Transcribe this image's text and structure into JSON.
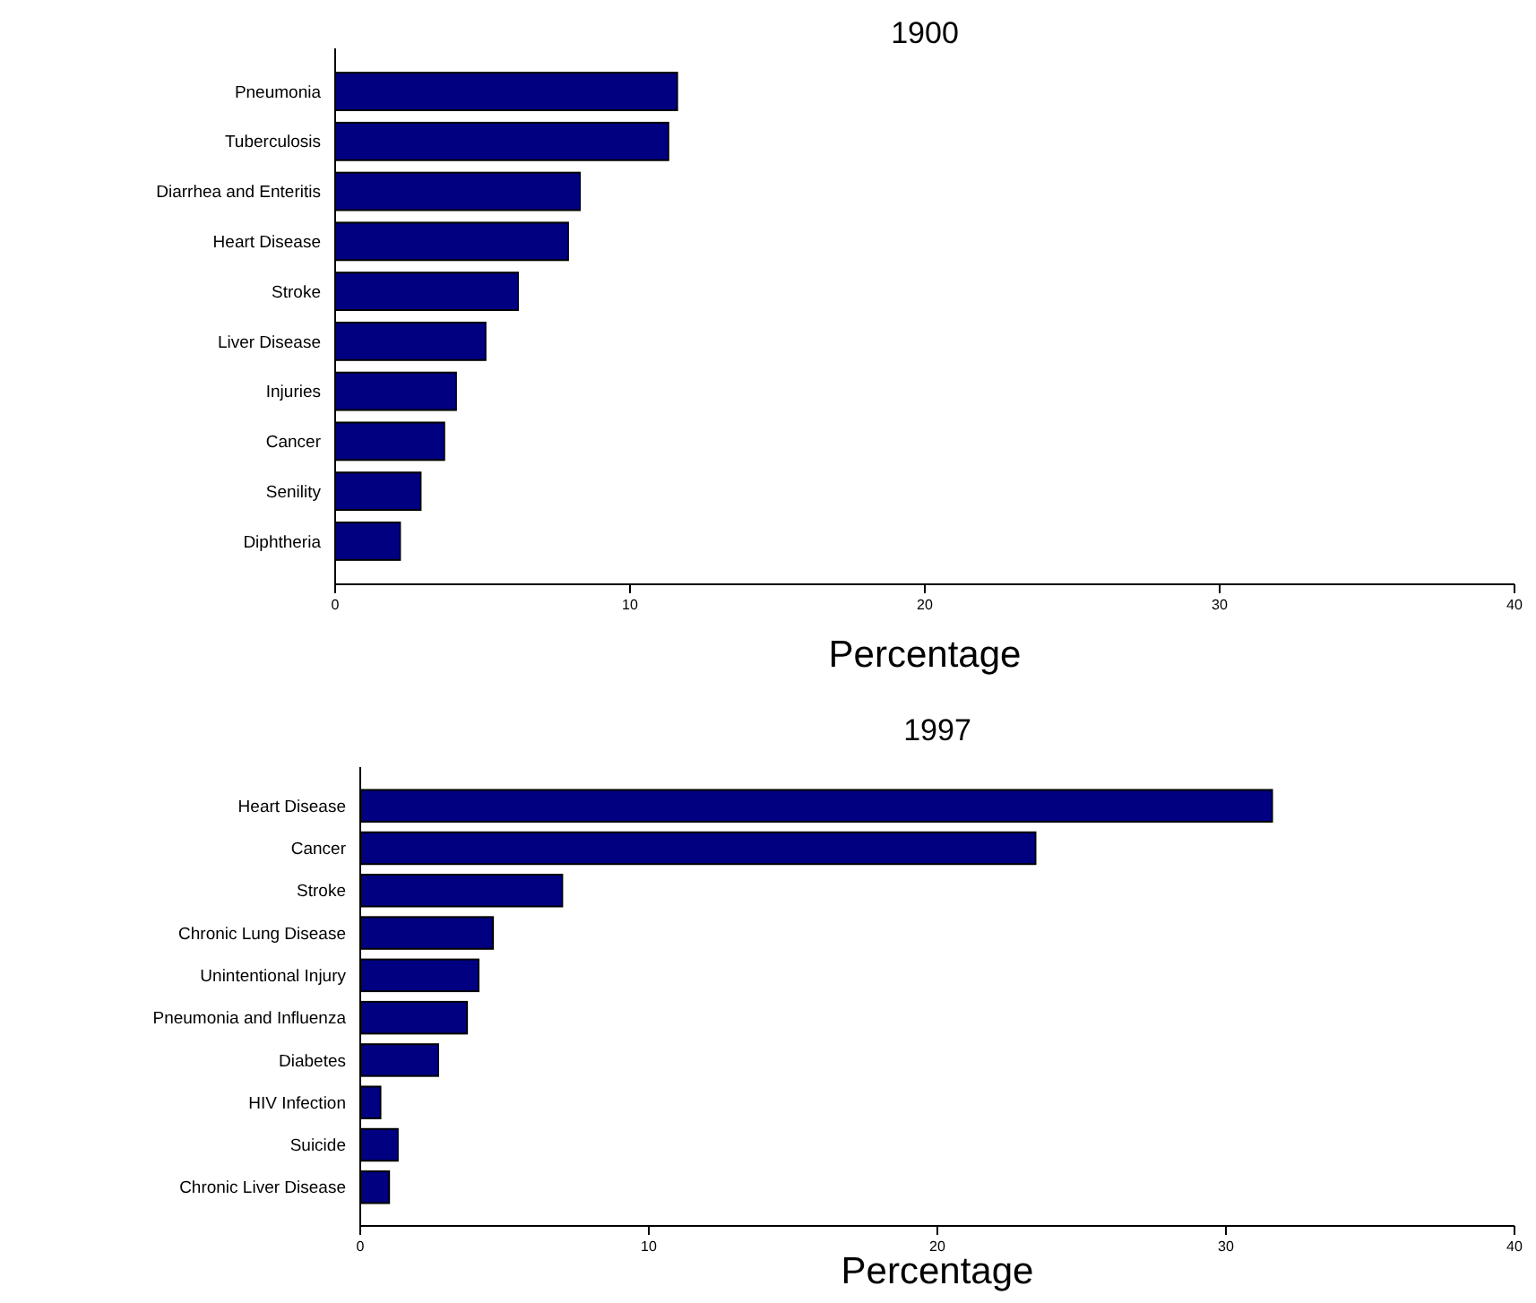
{
  "chart_data": [
    {
      "type": "bar",
      "orientation": "horizontal",
      "title": "1900",
      "xlabel": "Percentage",
      "categories": [
        "Pneumonia",
        "Tuberculosis",
        "Diarrhea and Enteritis",
        "Heart Disease",
        "Stroke",
        "Liver Disease",
        "Injuries",
        "Cancer",
        "Senility",
        "Diphtheria"
      ],
      "values": [
        11.6,
        11.3,
        8.3,
        7.9,
        6.2,
        5.1,
        4.1,
        3.7,
        2.9,
        2.2
      ],
      "color": "#000080",
      "xlim": [
        0,
        40
      ],
      "xticks": [
        0,
        10,
        20,
        30,
        40
      ]
    },
    {
      "type": "bar",
      "orientation": "horizontal",
      "title": "1997",
      "xlabel": "Percentage",
      "categories": [
        "Heart Disease",
        "Cancer",
        "Stroke",
        "Chronic Lung Disease",
        "Unintentional Injury",
        "Pneumonia and Influenza",
        "Diabetes",
        "HIV Infection",
        "Suicide",
        "Chronic Liver Disease"
      ],
      "values": [
        31.6,
        23.4,
        7.0,
        4.6,
        4.1,
        3.7,
        2.7,
        0.7,
        1.3,
        1.0
      ],
      "color": "#000080",
      "xlim": [
        0,
        40
      ],
      "xticks": [
        0,
        10,
        20,
        30,
        40
      ]
    }
  ]
}
